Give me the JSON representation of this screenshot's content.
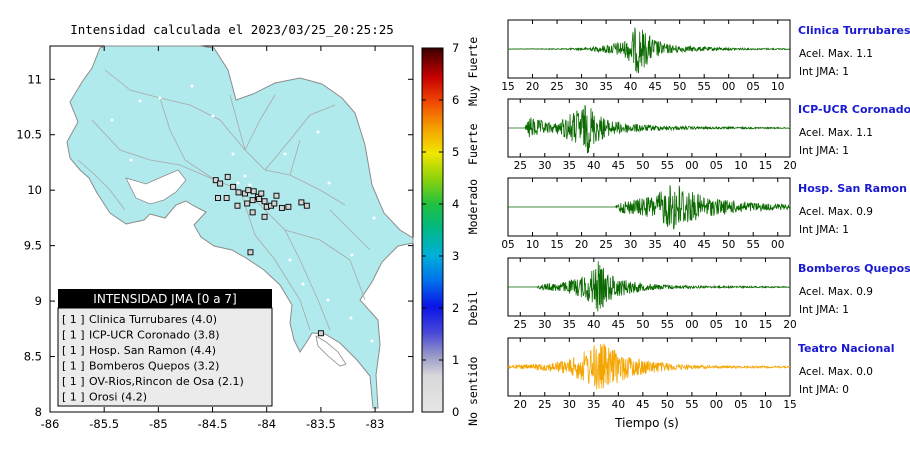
{
  "title": "Intensidad calculada el 2023/03/25_20:25:25",
  "map": {
    "x_ticks": [
      "-86",
      "-85.5",
      "-85",
      "-84.5",
      "-84",
      "-83.5",
      "-83"
    ],
    "y_ticks": [
      "11",
      "10.5",
      "10",
      "9.5",
      "9",
      "8.5",
      "8"
    ],
    "land_color": "#b0eaec",
    "stations": [
      {
        "lon": -84.47,
        "lat": 10.09
      },
      {
        "lon": -84.43,
        "lat": 10.06
      },
      {
        "lon": -84.36,
        "lat": 10.12
      },
      {
        "lon": -84.31,
        "lat": 10.03
      },
      {
        "lon": -84.26,
        "lat": 9.98
      },
      {
        "lon": -84.2,
        "lat": 9.97
      },
      {
        "lon": -84.17,
        "lat": 10.0
      },
      {
        "lon": -84.12,
        "lat": 9.99
      },
      {
        "lon": -84.08,
        "lat": 9.94
      },
      {
        "lon": -84.05,
        "lat": 9.97
      },
      {
        "lon": -84.02,
        "lat": 9.9
      },
      {
        "lon": -84.0,
        "lat": 9.85
      },
      {
        "lon": -83.96,
        "lat": 9.86
      },
      {
        "lon": -83.93,
        "lat": 9.88
      },
      {
        "lon": -83.91,
        "lat": 9.95
      },
      {
        "lon": -83.86,
        "lat": 9.84
      },
      {
        "lon": -83.8,
        "lat": 9.85
      },
      {
        "lon": -83.68,
        "lat": 9.89
      },
      {
        "lon": -83.63,
        "lat": 9.86
      },
      {
        "lon": -84.45,
        "lat": 9.93
      },
      {
        "lon": -84.37,
        "lat": 9.93
      },
      {
        "lon": -84.27,
        "lat": 9.86
      },
      {
        "lon": -84.18,
        "lat": 9.88
      },
      {
        "lon": -84.13,
        "lat": 9.8
      },
      {
        "lon": -84.02,
        "lat": 9.76
      },
      {
        "lon": -84.13,
        "lat": 9.91
      },
      {
        "lon": -84.07,
        "lat": 9.92
      },
      {
        "lon": -84.15,
        "lat": 9.44
      },
      {
        "lon": -83.5,
        "lat": 8.71
      }
    ]
  },
  "colorbar": {
    "ticks": [
      "0",
      "1",
      "2",
      "3",
      "4",
      "5",
      "6",
      "7"
    ],
    "labels": [
      "No sentido",
      "Debil",
      "Moderado",
      "Fuerte",
      "Muy Fuerte"
    ]
  },
  "legend": {
    "title": "INTENSIDAD JMA [0 a 7]",
    "items": [
      {
        "grade": "[ 1 ]",
        "text": "Clinica Turrubares (4.0)"
      },
      {
        "grade": "[ 1 ]",
        "text": "ICP-UCR Coronado (3.8)"
      },
      {
        "grade": "[ 1 ]",
        "text": "Hosp. San Ramon (4.4)"
      },
      {
        "grade": "[ 1 ]",
        "text": "Bomberos Quepos (3.2)"
      },
      {
        "grade": "[ 1 ]",
        "text": "OV-Rios,Rincon de Osa (2.1)"
      },
      {
        "grade": "[ 1 ]",
        "text": "Orosi (4.2)"
      }
    ]
  },
  "chart_data": [
    {
      "type": "line",
      "name": "Clinica Turrubares",
      "accel_label": "Acel. Max. 1.1",
      "jma_label": "Int JMA: 1",
      "color": "#0a6a00",
      "x_ticks": [
        "15",
        "20",
        "25",
        "30",
        "35",
        "40",
        "45",
        "50",
        "55",
        "00",
        "05",
        "10"
      ],
      "envelope": [
        [
          0,
          0.01
        ],
        [
          0.15,
          0.015
        ],
        [
          0.26,
          0.04
        ],
        [
          0.33,
          0.12
        ],
        [
          0.38,
          0.25
        ],
        [
          0.42,
          0.35
        ],
        [
          0.445,
          0.75
        ],
        [
          0.46,
          1.0
        ],
        [
          0.48,
          0.75
        ],
        [
          0.51,
          0.45
        ],
        [
          0.56,
          0.2
        ],
        [
          0.62,
          0.12
        ],
        [
          0.7,
          0.08
        ],
        [
          0.78,
          0.05
        ],
        [
          0.88,
          0.03
        ],
        [
          1,
          0.02
        ]
      ]
    },
    {
      "type": "line",
      "name": "ICP-UCR Coronado",
      "accel_label": "Acel. Max. 1.1",
      "jma_label": "Int JMA: 1",
      "color": "#0a6a00",
      "x_ticks": [
        "25",
        "30",
        "35",
        "40",
        "45",
        "50",
        "55",
        "00",
        "05",
        "10",
        "15",
        "20"
      ],
      "envelope": [
        [
          0,
          0.0
        ],
        [
          0.06,
          0.0
        ],
        [
          0.075,
          0.45
        ],
        [
          0.1,
          0.35
        ],
        [
          0.14,
          0.22
        ],
        [
          0.17,
          0.2
        ],
        [
          0.22,
          0.55
        ],
        [
          0.26,
          0.8
        ],
        [
          0.285,
          1.0
        ],
        [
          0.31,
          0.6
        ],
        [
          0.36,
          0.3
        ],
        [
          0.42,
          0.2
        ],
        [
          0.5,
          0.12
        ],
        [
          0.6,
          0.07
        ],
        [
          0.75,
          0.04
        ],
        [
          1,
          0.02
        ]
      ]
    },
    {
      "type": "line",
      "name": "Hosp. San Ramon",
      "accel_label": "Acel. Max. 0.9",
      "jma_label": "Int JMA: 1",
      "color": "#0a6a00",
      "x_ticks": [
        "05",
        "10",
        "15",
        "20",
        "25",
        "30",
        "35",
        "40",
        "45",
        "50",
        "55",
        "00"
      ],
      "envelope": [
        [
          0,
          0.0
        ],
        [
          0.38,
          0.0
        ],
        [
          0.4,
          0.25
        ],
        [
          0.45,
          0.3
        ],
        [
          0.52,
          0.45
        ],
        [
          0.56,
          0.75
        ],
        [
          0.59,
          1.0
        ],
        [
          0.62,
          0.85
        ],
        [
          0.66,
          0.55
        ],
        [
          0.72,
          0.35
        ],
        [
          0.8,
          0.25
        ],
        [
          0.9,
          0.15
        ],
        [
          1,
          0.1
        ]
      ]
    },
    {
      "type": "line",
      "name": "Bomberos Quepos",
      "accel_label": "Acel. Max. 0.9",
      "jma_label": "Int JMA: 1",
      "color": "#0a6a00",
      "x_ticks": [
        "25",
        "30",
        "35",
        "40",
        "45",
        "50",
        "55",
        "00",
        "05",
        "10",
        "15",
        "20"
      ],
      "envelope": [
        [
          0,
          0.0
        ],
        [
          0.1,
          0.0
        ],
        [
          0.12,
          0.12
        ],
        [
          0.2,
          0.2
        ],
        [
          0.26,
          0.4
        ],
        [
          0.3,
          0.7
        ],
        [
          0.32,
          1.0
        ],
        [
          0.35,
          0.6
        ],
        [
          0.4,
          0.35
        ],
        [
          0.48,
          0.15
        ],
        [
          0.58,
          0.08
        ],
        [
          0.7,
          0.04
        ],
        [
          1,
          0.02
        ]
      ]
    },
    {
      "type": "line",
      "name": "Teatro Nacional",
      "accel_label": "Acel. Max. 0.0",
      "jma_label": "Int JMA: 0",
      "color": "#f5a500",
      "x_ticks": [
        "20",
        "25",
        "30",
        "35",
        "40",
        "45",
        "50",
        "55",
        "00",
        "05",
        "10",
        "15"
      ],
      "xlabel": "Tiempo (s)",
      "envelope": [
        [
          0,
          0.06
        ],
        [
          0.1,
          0.12
        ],
        [
          0.17,
          0.2
        ],
        [
          0.22,
          0.32
        ],
        [
          0.26,
          0.55
        ],
        [
          0.29,
          0.75
        ],
        [
          0.32,
          1.0
        ],
        [
          0.36,
          0.8
        ],
        [
          0.4,
          0.55
        ],
        [
          0.46,
          0.35
        ],
        [
          0.54,
          0.2
        ],
        [
          0.62,
          0.1
        ],
        [
          0.72,
          0.05
        ],
        [
          1,
          0.03
        ]
      ]
    }
  ]
}
